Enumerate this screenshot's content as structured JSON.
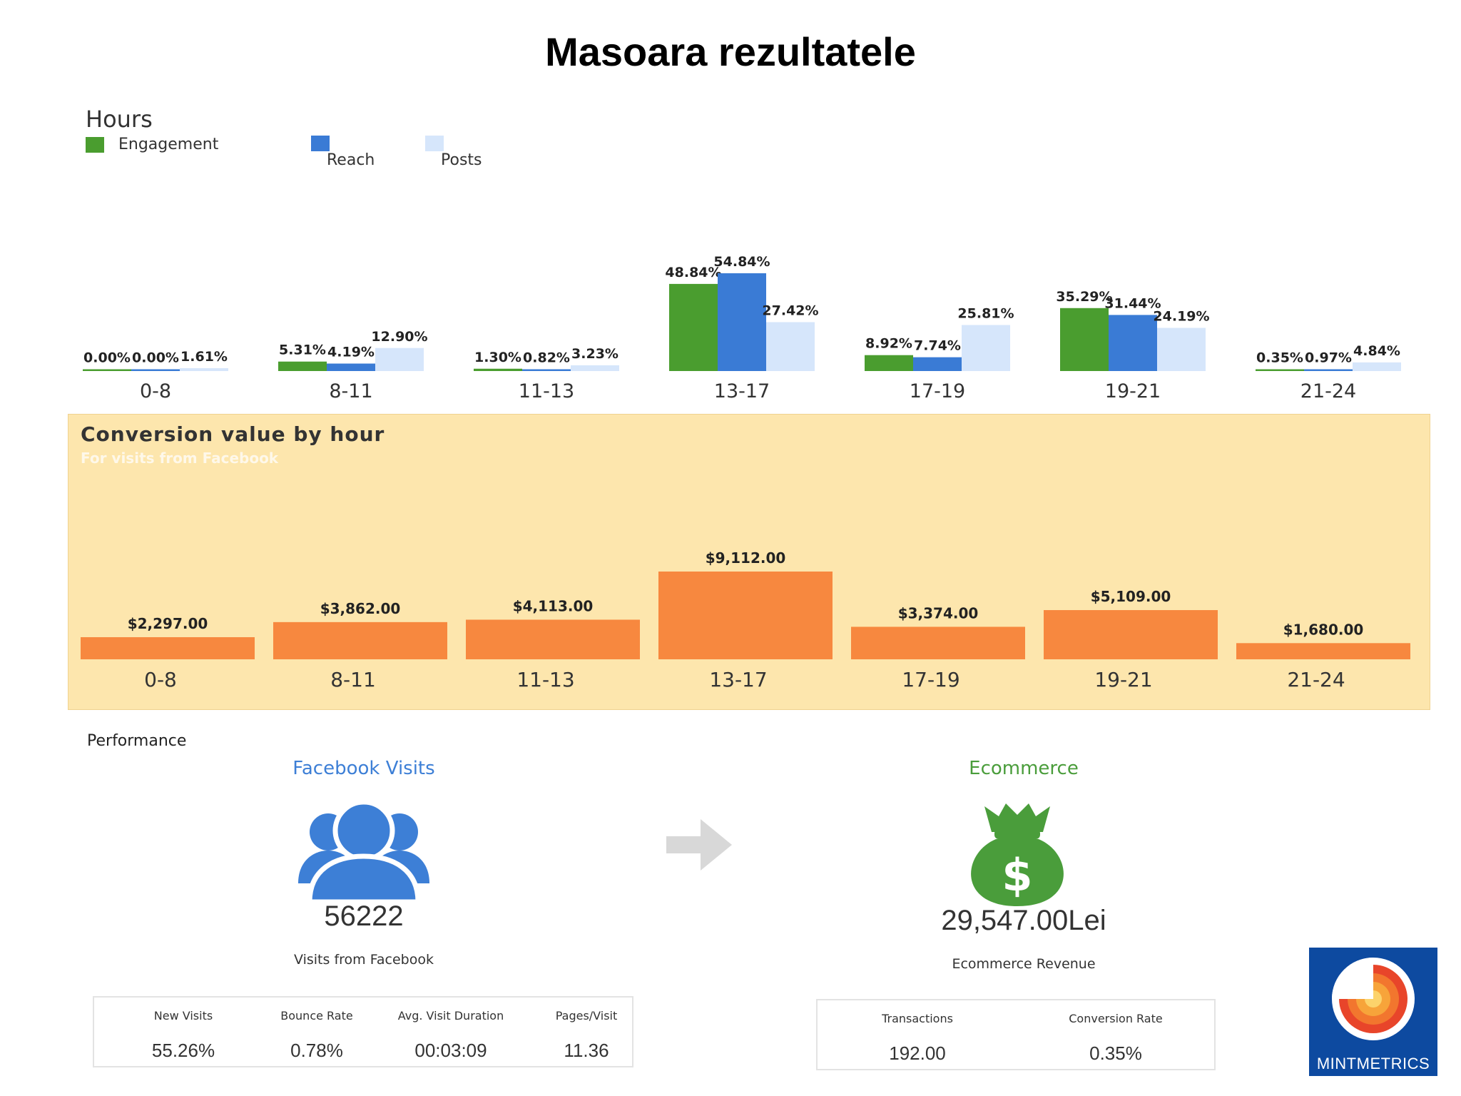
{
  "page_title": "Masoara rezultatele",
  "hours_chart": {
    "title": "Hours",
    "legend": [
      {
        "name": "Engagement",
        "color": "#4a9d2f"
      },
      {
        "name": "Reach",
        "color": "#3a7bd5"
      },
      {
        "name": "Posts",
        "color": "#d6e6fb"
      }
    ]
  },
  "conversion_chart": {
    "title": "Conversion value by hour",
    "subtitle": "For visits from Facebook"
  },
  "chart_data": [
    {
      "type": "bar",
      "title": "Hours",
      "categories": [
        "0-8",
        "8-11",
        "11-13",
        "13-17",
        "17-19",
        "19-21",
        "21-24"
      ],
      "series": [
        {
          "name": "Engagement",
          "values": [
            0.0,
            5.31,
            1.3,
            48.84,
            8.92,
            35.29,
            0.35
          ],
          "labels": [
            "0.00%",
            "5.31%",
            "1.30%",
            "48.84%",
            "8.92%",
            "35.29%",
            "0.35%"
          ]
        },
        {
          "name": "Reach",
          "values": [
            0.0,
            4.19,
            0.82,
            54.84,
            7.74,
            31.44,
            0.97
          ],
          "labels": [
            "0.00%",
            "4.19%",
            "0.82%",
            "54.84%",
            "7.74%",
            "31.44%",
            "0.97%"
          ]
        },
        {
          "name": "Posts",
          "values": [
            1.61,
            12.9,
            3.23,
            27.42,
            25.81,
            24.19,
            4.84
          ],
          "labels": [
            "1.61%",
            "12.90%",
            "3.23%",
            "27.42%",
            "25.81%",
            "24.19%",
            "4.84%"
          ]
        }
      ],
      "legend_position": "top-left",
      "grid": false
    },
    {
      "type": "bar",
      "title": "Conversion value by hour",
      "subtitle": "For visits from Facebook",
      "categories": [
        "0-8",
        "8-11",
        "11-13",
        "13-17",
        "17-19",
        "19-21",
        "21-24"
      ],
      "series": [
        {
          "values": [
            2297.0,
            3862.0,
            4113.0,
            9112.0,
            3374.0,
            5109.0,
            1680.0
          ],
          "labels": [
            "$2,297.00",
            "$3,862.00",
            "$4,113.00",
            "$9,112.00",
            "$3,374.00",
            "$5,109.00",
            "$1,680.00"
          ],
          "color": "#f7883f"
        }
      ],
      "grid": false
    }
  ],
  "performance": {
    "label": "Performance",
    "facebook": {
      "title": "Facebook Visits",
      "value": "56222",
      "caption": "Visits from Facebook",
      "icon": "users-icon",
      "stats": [
        {
          "label": "New Visits",
          "value": "55.26%"
        },
        {
          "label": "Bounce Rate",
          "value": "0.78%"
        },
        {
          "label": "Avg. Visit Duration",
          "value": "00:03:09"
        },
        {
          "label": "Pages/Visit",
          "value": "11.36"
        }
      ]
    },
    "ecommerce": {
      "title": "Ecommerce",
      "value": "29,547.00Lei",
      "caption": "Ecommerce Revenue",
      "icon": "money-bag-icon",
      "stats": [
        {
          "label": "Transactions",
          "value": "192.00"
        },
        {
          "label": "Conversion Rate",
          "value": "0.35%"
        }
      ]
    }
  },
  "logo": {
    "text": "MINTMETRICS"
  }
}
